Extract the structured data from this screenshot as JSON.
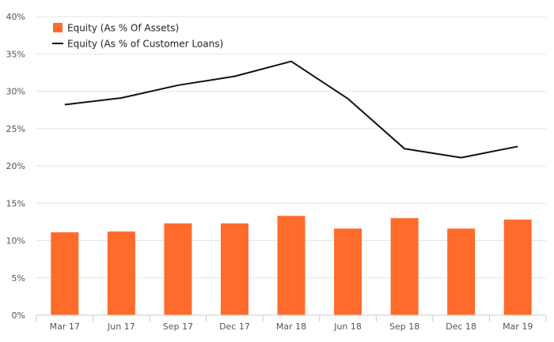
{
  "chart_data": {
    "type": "bar",
    "categories": [
      "Mar 17",
      "Jun 17",
      "Sep 17",
      "Dec 17",
      "Mar 18",
      "Jun 18",
      "Sep 18",
      "Dec 18",
      "Mar 19"
    ],
    "series": [
      {
        "name": "Equity (As % Of Assets)",
        "type": "bar",
        "color": "#ff6b2b",
        "values": [
          11.1,
          11.2,
          12.3,
          12.3,
          13.3,
          11.6,
          13.0,
          11.6,
          12.8
        ]
      },
      {
        "name": "Equity (As % of Customer Loans)",
        "type": "line",
        "color": "#111111",
        "values": [
          28.2,
          29.1,
          30.8,
          32.0,
          34.0,
          29.0,
          22.3,
          21.1,
          22.6
        ]
      }
    ],
    "y_ticks": [
      "0%",
      "5%",
      "10%",
      "15%",
      "20%",
      "25%",
      "30%",
      "35%",
      "40%"
    ],
    "ylim": [
      0,
      40
    ],
    "grid": true,
    "legend_position": "top-left"
  }
}
